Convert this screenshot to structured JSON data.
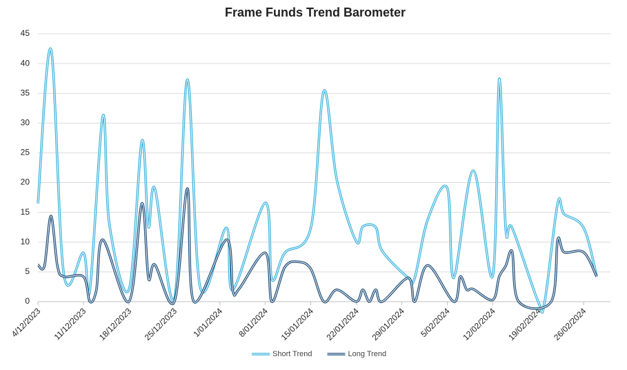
{
  "chart_data": {
    "type": "line",
    "title": "Frame Funds Trend Barometer",
    "xlim": [
      "4/12/2023",
      "28/02/2024"
    ],
    "xticks": [
      "4/12/2023",
      "11/12/2023",
      "18/12/2023",
      "25/12/2023",
      "1/01/2024",
      "8/01/2024",
      "15/01/2024",
      "22/01/2024",
      "29/01/2024",
      "5/02/2024",
      "12/02/2024",
      "19/02/2024",
      "26/02/2024"
    ],
    "ylim": [
      0,
      45
    ],
    "yticks": [
      0,
      5,
      10,
      15,
      20,
      25,
      30,
      35,
      40,
      45
    ],
    "grid": true,
    "legend": "bottom",
    "series": [
      {
        "name": "Short Trend",
        "color": "#3bb3dd",
        "x": [
          "4/12/2023",
          "6/12/2023",
          "8/12/2023",
          "11/12/2023",
          "12/12/2023",
          "14/12/2023",
          "15/12/2023",
          "18/12/2023",
          "20/12/2023",
          "21/12/2023",
          "22/12/2023",
          "25/12/2023",
          "27/12/2023",
          "29/12/2023",
          "2/01/2024",
          "3/01/2024",
          "8/01/2024",
          "9/01/2024",
          "11/01/2024",
          "15/01/2024",
          "17/01/2024",
          "19/01/2024",
          "22/01/2024",
          "23/01/2024",
          "25/01/2024",
          "26/01/2024",
          "30/01/2024",
          "31/01/2024",
          "2/02/2024",
          "5/02/2024",
          "6/02/2024",
          "9/02/2024",
          "12/02/2024",
          "13/02/2024",
          "14/02/2024",
          "15/02/2024",
          "19/02/2024",
          "20/02/2024",
          "22/02/2024",
          "23/02/2024",
          "26/02/2024",
          "28/02/2024"
        ],
        "values": [
          16.5,
          42.4,
          4.5,
          8.2,
          2,
          31.2,
          13,
          2,
          27,
          12.6,
          19,
          0.5,
          37.3,
          2.3,
          12.4,
          2,
          16.6,
          3.8,
          8.2,
          12.4,
          35.4,
          20.5,
          10.1,
          12.6,
          12.5,
          8.5,
          4,
          4,
          13.8,
          19.1,
          4,
          22,
          4.3,
          37.4,
          12.2,
          12.4,
          0,
          0,
          16.5,
          14.7,
          12.4,
          4.3
        ]
      },
      {
        "name": "Long Trend",
        "color": "#1f4e79",
        "x": [
          "4/12/2023",
          "5/12/2023",
          "6/12/2023",
          "7/12/2023",
          "8/12/2023",
          "11/12/2023",
          "12/12/2023",
          "13/12/2023",
          "14/12/2023",
          "18/12/2023",
          "20/12/2023",
          "21/12/2023",
          "22/12/2023",
          "25/12/2023",
          "27/12/2023",
          "28/12/2023",
          "2/01/2024",
          "3/01/2024",
          "4/01/2024",
          "8/01/2024",
          "9/01/2024",
          "11/01/2024",
          "13/01/2024",
          "15/01/2024",
          "17/01/2024",
          "19/01/2024",
          "22/01/2024",
          "23/01/2024",
          "24/01/2024",
          "25/01/2024",
          "26/01/2024",
          "30/01/2024",
          "31/01/2024",
          "2/02/2024",
          "6/02/2024",
          "7/02/2024",
          "8/02/2024",
          "9/02/2024",
          "12/02/2024",
          "13/02/2024",
          "14/02/2024",
          "15/02/2024",
          "16/02/2024",
          "21/02/2024",
          "22/02/2024",
          "23/02/2024",
          "26/02/2024",
          "28/02/2024"
        ],
        "values": [
          6.2,
          6,
          14.4,
          6,
          4.2,
          4.2,
          0,
          2,
          10.4,
          0,
          16.5,
          4,
          6.2,
          0,
          19,
          0,
          10.4,
          1.8,
          2.2,
          8.2,
          0,
          5.8,
          6.7,
          5.5,
          0,
          2,
          0,
          2,
          0,
          2,
          0,
          4,
          0,
          6.1,
          0,
          4.2,
          2,
          2.1,
          0.3,
          4.2,
          6,
          8.4,
          0,
          0,
          10.4,
          8.3,
          8.3,
          4.2
        ]
      }
    ]
  }
}
